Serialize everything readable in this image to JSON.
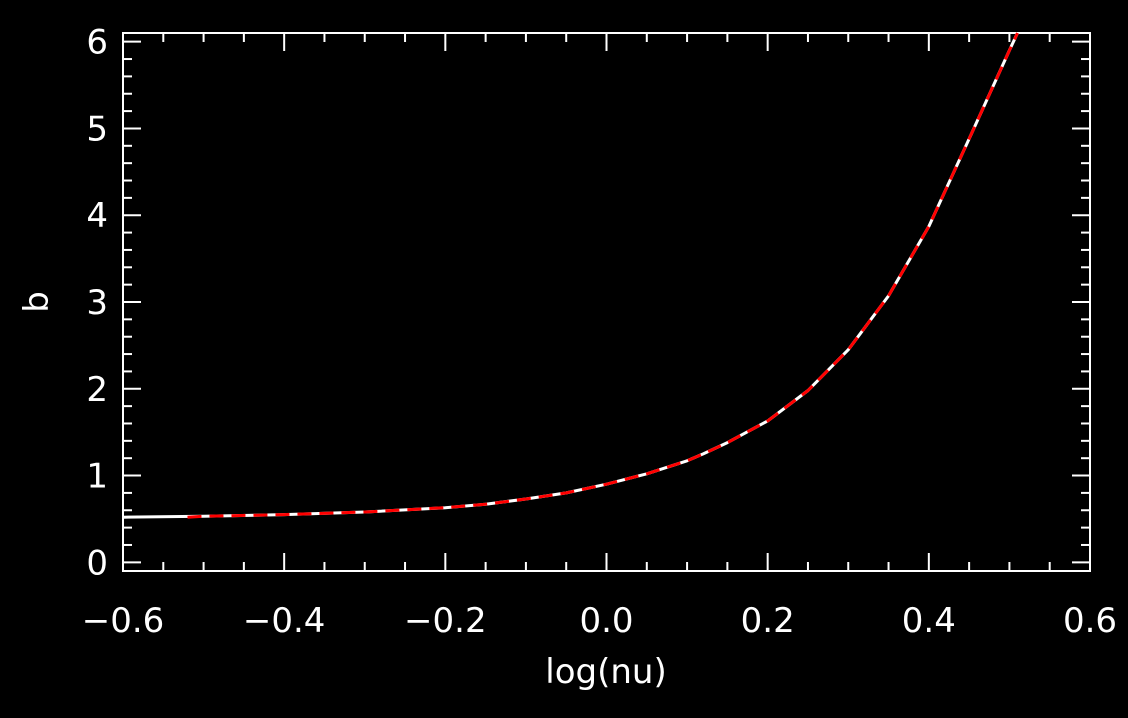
{
  "chart_data": {
    "type": "line",
    "title": "",
    "xlabel": "log(nu)",
    "ylabel": "b",
    "xlim": [
      -0.6,
      0.6
    ],
    "ylim": [
      -0.1,
      6.1
    ],
    "grid": false,
    "background": "#000000",
    "axis_color": "#ffffff",
    "x_ticks": [
      -0.6,
      -0.4,
      -0.2,
      0.0,
      0.2,
      0.4,
      0.6
    ],
    "x_tick_labels": [
      "−0.6",
      "−0.4",
      "−0.2",
      "0.0",
      "0.2",
      "0.4",
      "0.6"
    ],
    "y_ticks": [
      0,
      1,
      2,
      3,
      4,
      5,
      6
    ],
    "y_tick_labels": [
      "0",
      "1",
      "2",
      "3",
      "4",
      "5",
      "6"
    ],
    "series": [
      {
        "color": "#ffffff",
        "style": "solid",
        "x": [
          -0.6,
          -0.5,
          -0.4,
          -0.3,
          -0.2,
          -0.15,
          -0.1,
          -0.05,
          0.0,
          0.05,
          0.1,
          0.12,
          0.15,
          0.2,
          0.25,
          0.3,
          0.35,
          0.4,
          0.45,
          0.5,
          0.51
        ],
        "y": [
          0.52,
          0.53,
          0.55,
          0.58,
          0.63,
          0.67,
          0.73,
          0.8,
          0.9,
          1.02,
          1.17,
          1.25,
          1.38,
          1.63,
          1.98,
          2.45,
          3.07,
          3.87,
          4.88,
          5.9,
          6.1
        ]
      },
      {
        "color": "#ff0000",
        "style": "dashed",
        "x": [
          -0.52,
          -0.5,
          -0.4,
          -0.3,
          -0.2,
          -0.15,
          -0.1,
          -0.05,
          0.0,
          0.05,
          0.1,
          0.12,
          0.15,
          0.2,
          0.25,
          0.3,
          0.35,
          0.4,
          0.45,
          0.5,
          0.51
        ],
        "y": [
          0.52,
          0.53,
          0.55,
          0.58,
          0.63,
          0.67,
          0.73,
          0.8,
          0.9,
          1.02,
          1.17,
          1.25,
          1.38,
          1.63,
          1.98,
          2.45,
          3.07,
          3.87,
          4.88,
          5.9,
          6.1
        ]
      }
    ]
  }
}
